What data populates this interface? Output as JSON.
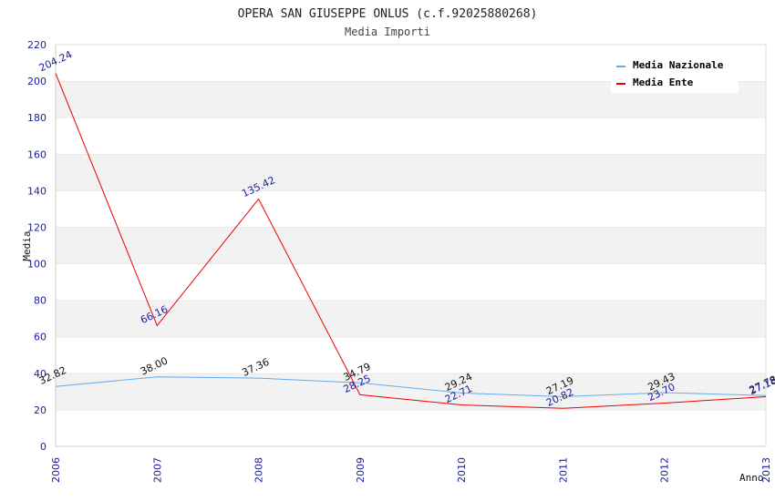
{
  "chart_data": {
    "type": "line",
    "title": "OPERA SAN GIUSEPPE ONLUS (c.f.92025880268)",
    "subtitle": "Media Importi",
    "xlabel": "Anno",
    "ylabel": "Media",
    "categories": [
      "2006",
      "2007",
      "2008",
      "2009",
      "2010",
      "2011",
      "2012",
      "2013"
    ],
    "ylim": [
      0,
      220
    ],
    "yticks": [
      0,
      20,
      40,
      60,
      80,
      100,
      120,
      140,
      160,
      180,
      200,
      220
    ],
    "grid": "horizontal bands",
    "legend_position": "top-right",
    "series": [
      {
        "name": "Media Nazionale",
        "color": "#66aaee",
        "label_color": "#111111",
        "values": [
          32.82,
          38.0,
          37.36,
          34.79,
          29.24,
          27.19,
          29.43,
          27.78
        ],
        "labels": [
          "32.82",
          "38.00",
          "37.36",
          "34.79",
          "29.24",
          "27.19",
          "29.43",
          "27.78"
        ]
      },
      {
        "name": "Media Ente",
        "color": "#ee0000",
        "label_color": "#1a1aa6",
        "values": [
          204.24,
          66.16,
          135.42,
          28.25,
          22.71,
          20.82,
          23.7,
          27.18
        ],
        "labels": [
          "204.24",
          "66.16",
          "135.42",
          "28.25",
          "22.71",
          "20.82",
          "23.70",
          "27.18"
        ]
      }
    ]
  }
}
